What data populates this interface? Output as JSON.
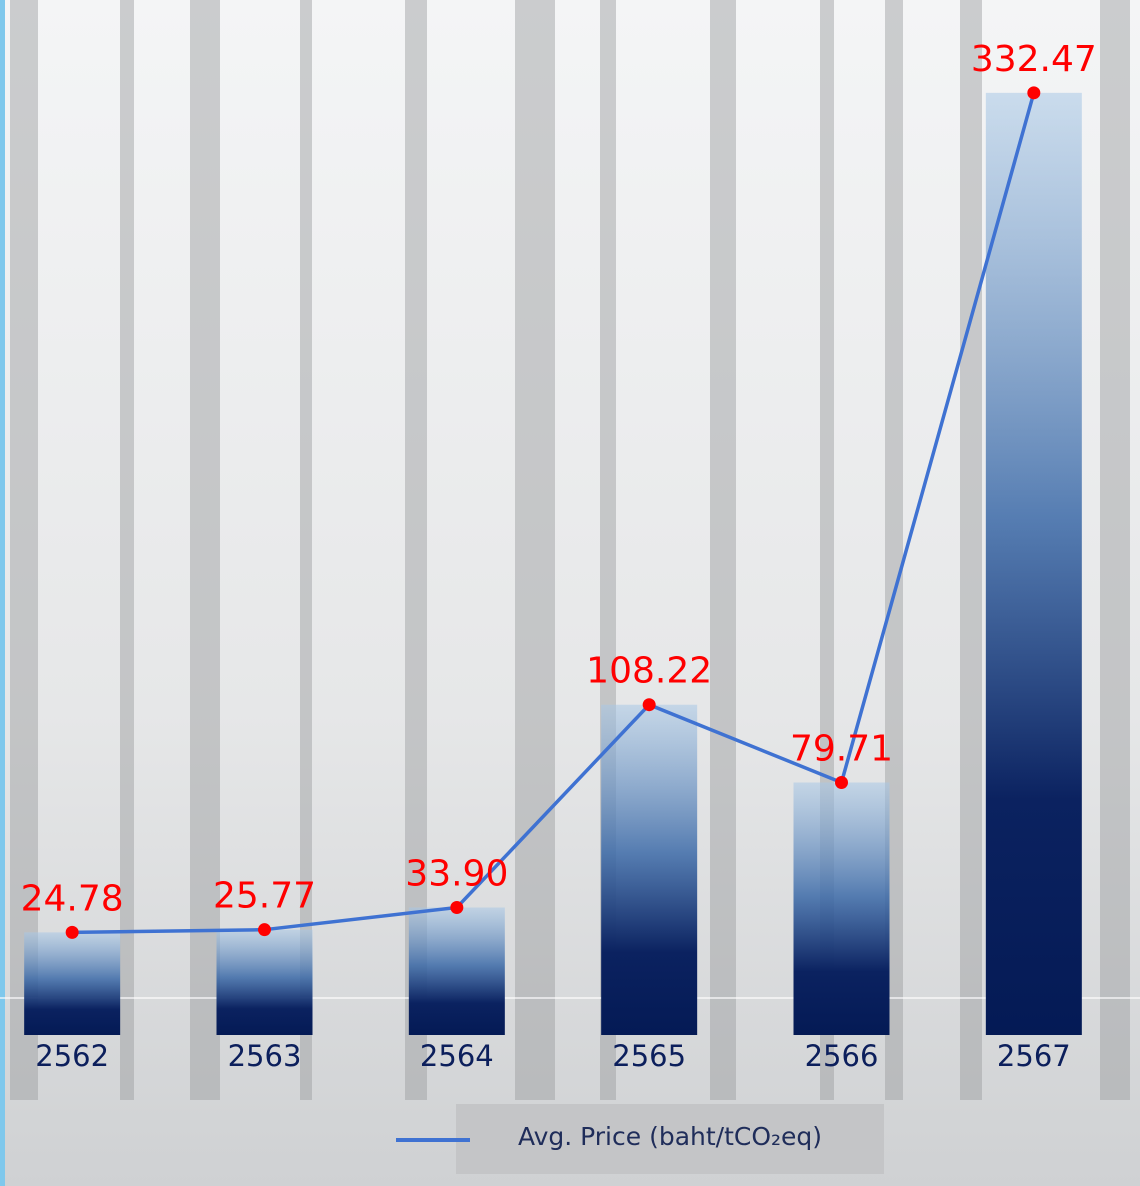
{
  "chart_data": {
    "type": "bar_line",
    "categories": [
      "2562",
      "2563",
      "2564",
      "2565",
      "2566",
      "2567"
    ],
    "series": [
      {
        "name": "Avg. Price (baht/tCO₂eq)",
        "color": "#3f72d2",
        "values": [
          24.78,
          25.77,
          33.9,
          108.22,
          79.71,
          332.47
        ],
        "value_labels": [
          "24.78",
          "25.77",
          "33.90",
          "108.22",
          "79.71",
          "332.47"
        ]
      }
    ],
    "ylim": [
      0,
      350
    ]
  }
}
